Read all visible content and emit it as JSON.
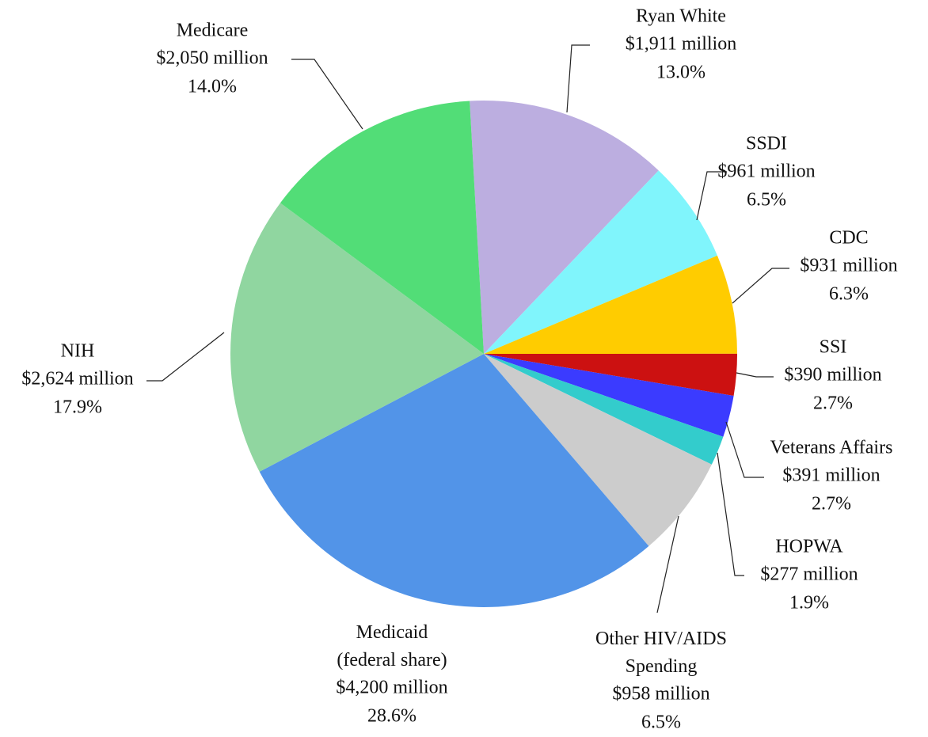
{
  "chart_data": {
    "type": "pie",
    "categories": [
      "Ryan White",
      "SSDI",
      "CDC",
      "SSI",
      "Veterans Affairs",
      "HOPWA",
      "Other HIV/AIDS\nSpending",
      "Medicaid\n(federal share)",
      "NIH",
      "Medicare"
    ],
    "values": [
      1911,
      961,
      931,
      390,
      391,
      277,
      958,
      4200,
      2624,
      2050
    ],
    "value_labels": [
      "$1,911 million",
      "$961 million",
      "$931 million",
      "$390 million",
      "$391 million",
      "$277 million",
      "$958 million",
      "$4,200 million",
      "$2,624 million",
      "$2,050 million"
    ],
    "percentages": [
      13.0,
      6.5,
      6.3,
      2.7,
      2.7,
      1.9,
      6.5,
      28.6,
      17.9,
      14.0
    ],
    "percentage_labels": [
      "13.0%",
      "6.5%",
      "6.3%",
      "2.7%",
      "2.7%",
      "1.9%",
      "6.5%",
      "28.6%",
      "17.9%",
      "14.0%"
    ],
    "colors": [
      "#bcaee0",
      "#80f5fc",
      "#ffcc00",
      "#cc1111",
      "#3b3bff",
      "#33cccc",
      "#cccccc",
      "#5294e8",
      "#90d6a0",
      "#52dd77"
    ]
  }
}
